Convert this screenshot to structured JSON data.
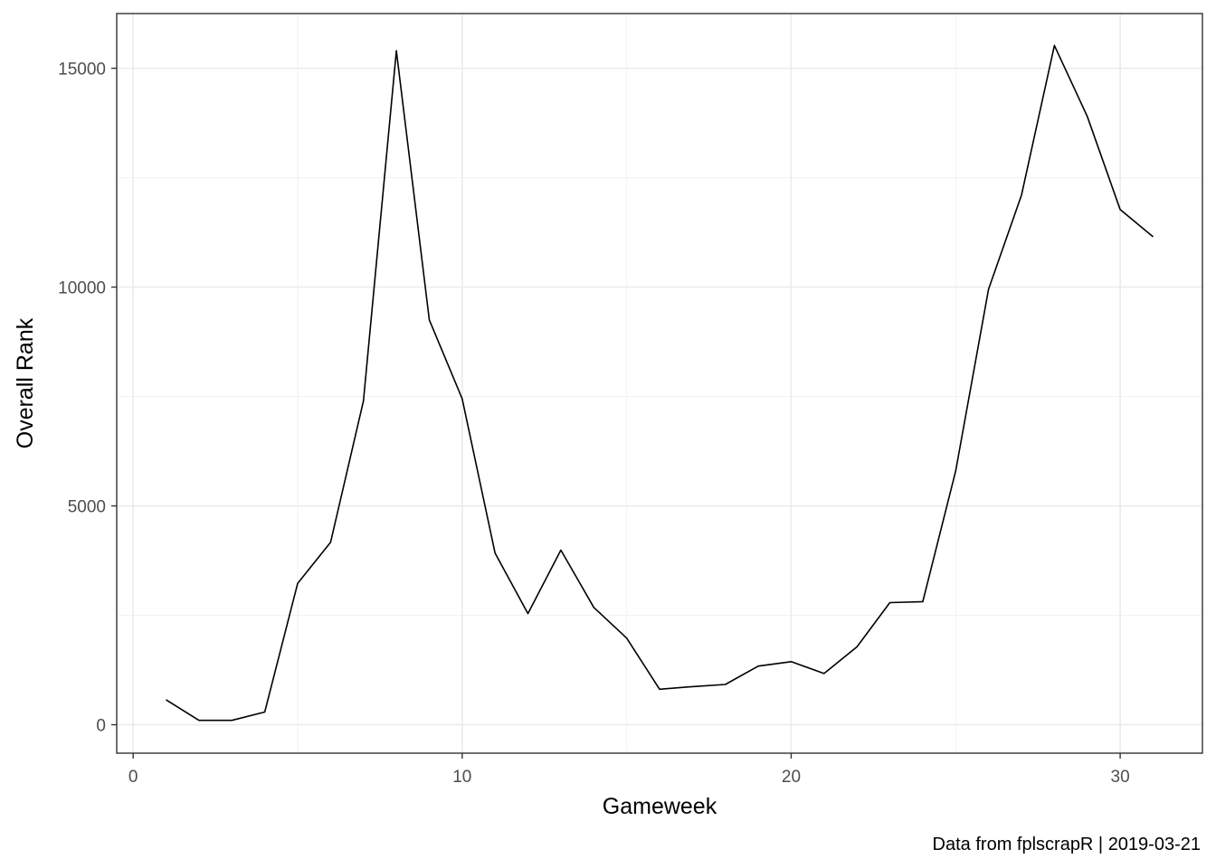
{
  "chart_data": {
    "type": "line",
    "title": "",
    "xlabel": "Gameweek",
    "ylabel": "Overall Rank",
    "caption": "Data from fplscrapR | 2019-03-21",
    "xlim": [
      -0.5,
      32.5
    ],
    "ylim": [
      -650,
      16250
    ],
    "x_ticks": [
      0,
      10,
      20,
      30
    ],
    "x_tick_labels": [
      "0",
      "10",
      "20",
      "30"
    ],
    "y_ticks": [
      0,
      5000,
      10000,
      15000
    ],
    "y_tick_labels": [
      "0",
      "5000",
      "10000",
      "15000"
    ],
    "grid": true,
    "theme": "bw",
    "line_color": "#000000",
    "series": [
      {
        "x": [
          1,
          2,
          3,
          4,
          5,
          6,
          7,
          8,
          9,
          10,
          11,
          12,
          13,
          14,
          15,
          16,
          17,
          18,
          19,
          20,
          21,
          22,
          23,
          24,
          25,
          26,
          27,
          28,
          29,
          30,
          31
        ],
        "values": [
          570,
          100,
          100,
          290,
          3230,
          4170,
          7400,
          15400,
          9250,
          7450,
          3920,
          2540,
          3990,
          2680,
          1980,
          810,
          870,
          920,
          1340,
          1440,
          1170,
          1780,
          2790,
          2810,
          5800,
          9950,
          12100,
          15520,
          13900,
          11770,
          11150
        ]
      }
    ]
  }
}
